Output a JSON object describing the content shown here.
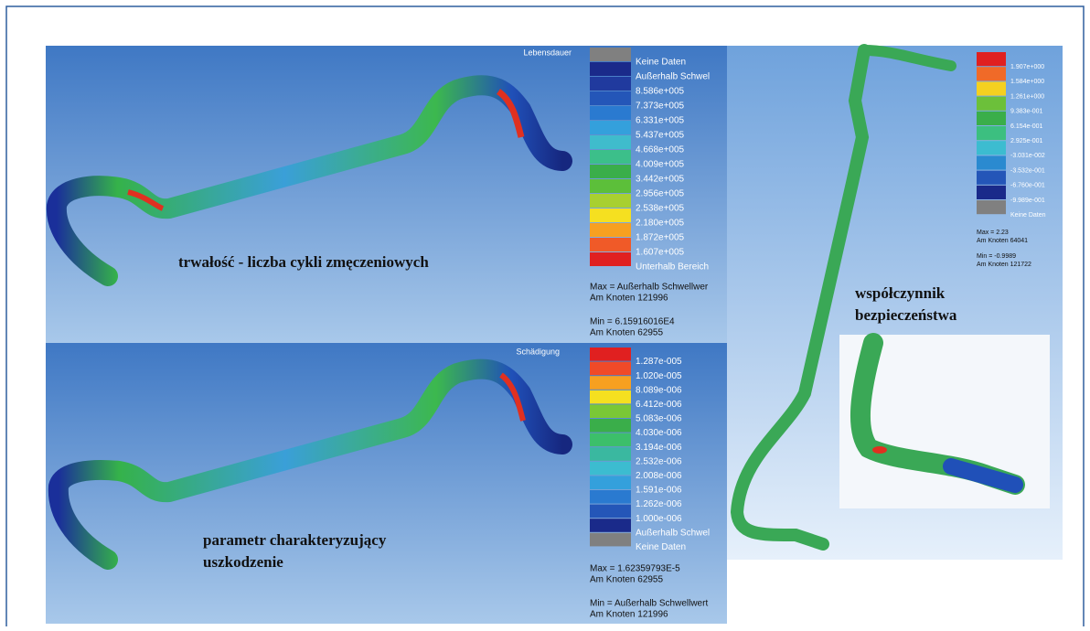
{
  "panels": [
    {
      "title": "Lebensdauer",
      "caption": [
        "trwałość - liczba cykli zmęczeniowych"
      ],
      "legend": [
        "Keine Daten",
        "Außerhalb Schwel",
        "8.586e+005",
        "7.373e+005",
        "6.331e+005",
        "5.437e+005",
        "4.668e+005",
        "4.009e+005",
        "3.442e+005",
        "2.956e+005",
        "2.538e+005",
        "2.180e+005",
        "1.872e+005",
        "1.607e+005",
        "Unterhalb Bereich"
      ],
      "max": [
        "Max = Außerhalb Schwellwer",
        "Am Knoten 121996"
      ],
      "min": [
        "Min = 6.15916016E4",
        "Am Knoten 62955"
      ]
    },
    {
      "title": "Schädigung",
      "caption": [
        "parametr charakteryzujący",
        "uszkodzenie"
      ],
      "legend": [
        "1.287e-005",
        "1.020e-005",
        "8.089e-006",
        "6.412e-006",
        "5.083e-006",
        "4.030e-006",
        "3.194e-006",
        "2.532e-006",
        "2.008e-006",
        "1.591e-006",
        "1.262e-006",
        "1.000e-006",
        "Außerhalb Schwel",
        "Keine Daten"
      ],
      "max": [
        "Max = 1.62359793E-5",
        "Am Knoten 62955"
      ],
      "min": [
        "Min = Außerhalb Schwellwert",
        "Am Knoten 121996"
      ]
    },
    {
      "caption": [
        "współczynnik",
        "bezpieczeństwa"
      ],
      "legend": [
        "1.907e+000",
        "1.584e+000",
        "1.261e+000",
        "9.383e-001",
        "6.154e-001",
        "2.925e-001",
        "-3.031e-002",
        "-3.532e-001",
        "-6.760e-001",
        "-9.989e-001",
        "Keine Daten"
      ],
      "max": [
        "Max = 2.23",
        "Am Knoten 64041"
      ],
      "min": [
        "Min = -0.9989",
        "Am Knoten 121722"
      ]
    }
  ]
}
